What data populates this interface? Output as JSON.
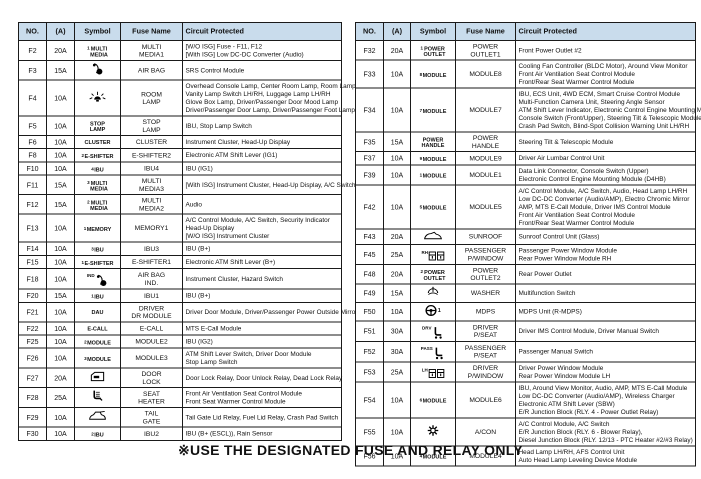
{
  "caption": "※USE THE DESIGNATED FUSE AND RELAY ONLY",
  "columns": [
    "NO.",
    "(A)",
    "Symbol",
    "Fuse Name",
    "Circuit Protected"
  ],
  "colors": {
    "header_bg": "#c9dcec",
    "border": "#1a1a1a"
  },
  "left_table": {
    "rows": [
      {
        "no": "F2",
        "amp": "20A",
        "symbol": {
          "sup": "1",
          "lines": [
            "MULTI",
            "MEDIA"
          ]
        },
        "fuse_name": [
          "MULTI",
          "MEDIA1"
        ],
        "circuits": [
          "[W/O ISG] Fuse - F11, F12",
          "[With ISG] Low DC-DC Converter (Audio)"
        ]
      },
      {
        "no": "F3",
        "amp": "15A",
        "symbol": {
          "icon": "airbag-icon"
        },
        "fuse_name": [
          "AIR BAG"
        ],
        "circuits": [
          "SRS Control Module"
        ]
      },
      {
        "no": "F4",
        "amp": "10A",
        "symbol": {
          "icon": "room-lamp-icon"
        },
        "fuse_name": [
          "ROOM",
          "LAMP"
        ],
        "circuits": [
          "Overhead Console Lamp, Center Room Lamp, Room Lamp",
          "Vanity Lamp Switch LH/RH, Luggage Lamp LH/RH",
          "Glove Box Lamp, Driver/Passenger Door Mood Lamp",
          "Driver/Passenger Door Lamp, Driver/Passenger Foot Lamp"
        ]
      },
      {
        "no": "F5",
        "amp": "10A",
        "symbol": {
          "lines": [
            "STOP",
            "LAMP"
          ]
        },
        "fuse_name": [
          "STOP",
          "LAMP"
        ],
        "circuits": [
          "IBU, Stop Lamp Switch"
        ]
      },
      {
        "no": "F6",
        "amp": "10A",
        "symbol": {
          "lines": [
            "CLUSTER"
          ]
        },
        "fuse_name": [
          "CLUSTER"
        ],
        "circuits": [
          "Instrument Cluster, Head-Up Display"
        ]
      },
      {
        "no": "F8",
        "amp": "10A",
        "symbol": {
          "sup": "2",
          "lines": [
            "E-SHIFTER"
          ]
        },
        "fuse_name": [
          "E-SHIFTER2"
        ],
        "circuits": [
          "Electronic ATM Shift Lever (IG1)"
        ]
      },
      {
        "no": "F10",
        "amp": "10A",
        "symbol": {
          "sup": "4",
          "lines": [
            "IBU"
          ]
        },
        "fuse_name": [
          "IBU4"
        ],
        "circuits": [
          "IBU (IG1)"
        ]
      },
      {
        "no": "F11",
        "amp": "15A",
        "symbol": {
          "sup": "3",
          "lines": [
            "MULTI",
            "MEDIA"
          ]
        },
        "fuse_name": [
          "MULTI",
          "MEDIA3"
        ],
        "circuits": [
          "[With ISG] Instrument Cluster, Head-Up Display, A/C Switch"
        ]
      },
      {
        "no": "F12",
        "amp": "15A",
        "symbol": {
          "sup": "2",
          "lines": [
            "MULTI",
            "MEDIA"
          ]
        },
        "fuse_name": [
          "MULTI",
          "MEDIA2"
        ],
        "circuits": [
          "Audio"
        ]
      },
      {
        "no": "F13",
        "amp": "10A",
        "symbol": {
          "sup": "1",
          "lines": [
            "MEMORY"
          ]
        },
        "fuse_name": [
          "MEMORY1"
        ],
        "circuits": [
          "A/C Control Module, A/C Switch, Security Indicator",
          "Head-Up Display",
          "[W/O ISG] Instrument Cluster"
        ]
      },
      {
        "no": "F14",
        "amp": "10A",
        "symbol": {
          "sup": "3",
          "lines": [
            "IBU"
          ]
        },
        "fuse_name": [
          "IBU3"
        ],
        "circuits": [
          "IBU (B+)"
        ]
      },
      {
        "no": "F15",
        "amp": "10A",
        "symbol": {
          "sup": "1",
          "lines": [
            "E-SHIFTER"
          ]
        },
        "fuse_name": [
          "E-SHIFTER1"
        ],
        "circuits": [
          "Electronic ATM Shift Lever (B+)"
        ]
      },
      {
        "no": "F18",
        "amp": "10A",
        "symbol": {
          "sup": "IND",
          "icon": "airbag-icon"
        },
        "fuse_name": [
          "AIR BAG",
          "IND."
        ],
        "circuits": [
          "Instrument Cluster, Hazard Switch"
        ]
      },
      {
        "no": "F20",
        "amp": "15A",
        "symbol": {
          "sup": "1",
          "lines": [
            "IBU"
          ]
        },
        "fuse_name": [
          "IBU1"
        ],
        "circuits": [
          "IBU (B+)"
        ]
      },
      {
        "no": "F21",
        "amp": "10A",
        "symbol": {
          "lines": [
            "DAU"
          ]
        },
        "fuse_name": [
          "DRIVER",
          "DR MODULE"
        ],
        "circuits": [
          "Driver Door Module, Driver/Passenger Power Outside Mirror"
        ]
      },
      {
        "no": "F22",
        "amp": "10A",
        "symbol": {
          "lines": [
            "E-CALL"
          ]
        },
        "fuse_name": [
          "E-CALL"
        ],
        "circuits": [
          "MTS E-Call Module"
        ]
      },
      {
        "no": "F25",
        "amp": "10A",
        "symbol": {
          "sup": "2",
          "lines": [
            "MODULE"
          ]
        },
        "fuse_name": [
          "MODULE2"
        ],
        "circuits": [
          "IBU (IG2)"
        ]
      },
      {
        "no": "F26",
        "amp": "10A",
        "symbol": {
          "sup": "3",
          "lines": [
            "MODULE"
          ]
        },
        "fuse_name": [
          "MODULE3"
        ],
        "circuits": [
          "ATM Shift Lever Switch, Driver Door Module",
          "Stop Lamp Switch"
        ]
      },
      {
        "no": "F27",
        "amp": "20A",
        "symbol": {
          "icon": "door-lock-icon"
        },
        "fuse_name": [
          "DOOR",
          "LOCK"
        ],
        "circuits": [
          "Door Lock Relay, Door Unlock Relay, Dead Lock Relay"
        ]
      },
      {
        "no": "F28",
        "amp": "25A",
        "symbol": {
          "icon": "seat-heater-icon"
        },
        "fuse_name": [
          "SEAT",
          "HEATER"
        ],
        "circuits": [
          "Front Air Ventilation Seat Control Module",
          "Front Seat Warmer Control Module"
        ]
      },
      {
        "no": "F29",
        "amp": "10A",
        "symbol": {
          "icon": "tail-gate-icon"
        },
        "fuse_name": [
          "TAIL",
          "GATE"
        ],
        "circuits": [
          "Tail Gate Lid Relay, Fuel Lid Relay, Crash Pad Switch"
        ]
      },
      {
        "no": "F30",
        "amp": "10A",
        "symbol": {
          "sup": "2",
          "lines": [
            "IBU"
          ]
        },
        "fuse_name": [
          "IBU2"
        ],
        "circuits": [
          "IBU (B+ (ESCL)), Rain Sensor"
        ]
      }
    ]
  },
  "right_table": {
    "rows": [
      {
        "no": "F32",
        "amp": "20A",
        "symbol": {
          "sup": "1",
          "lines": [
            "POWER",
            "OUTLET"
          ]
        },
        "fuse_name": [
          "POWER",
          "OUTLET1"
        ],
        "circuits": [
          "Front Power Outlet #2"
        ]
      },
      {
        "no": "F33",
        "amp": "10A",
        "symbol": {
          "sup": "8",
          "lines": [
            "MODULE"
          ]
        },
        "fuse_name": [
          "MODULE8"
        ],
        "circuits": [
          "Cooling Fan Controller (BLDC Motor), Around View Monitor",
          "Front Air Ventilation Seat Control Module",
          "Front/Rear Seat Warmer Control Module"
        ]
      },
      {
        "no": "F34",
        "amp": "10A",
        "symbol": {
          "sup": "7",
          "lines": [
            "MODULE"
          ]
        },
        "fuse_name": [
          "MODULE7"
        ],
        "circuits": [
          "IBU, ECS Unit, 4WD ECM, Smart Cruise Control Module",
          "Multi-Function Camera Unit, Steering Angle Sensor",
          "ATM Shift Lever Indicator, Electronic Control Engine Mounting Module",
          "Console Switch (Front/Upper), Steering Tilt & Telescopic Module",
          "Crash Pad Switch, Blind-Spot Collision Warning Unit LH/RH"
        ]
      },
      {
        "no": "F35",
        "amp": "15A",
        "symbol": {
          "lines": [
            "POWER",
            "HANDLE"
          ]
        },
        "fuse_name": [
          "POWER",
          "HANDLE"
        ],
        "circuits": [
          "Steering Tilt & Telescopic Module"
        ]
      },
      {
        "no": "F37",
        "amp": "10A",
        "symbol": {
          "sup": "9",
          "lines": [
            "MODULE"
          ]
        },
        "fuse_name": [
          "MODULE9"
        ],
        "circuits": [
          "Driver Air Lumbar Control Unit"
        ]
      },
      {
        "no": "F39",
        "amp": "10A",
        "symbol": {
          "sup": "1",
          "lines": [
            "MODULE"
          ]
        },
        "fuse_name": [
          "MODULE1"
        ],
        "circuits": [
          "Data Link Connector, Console Switch (Upper)",
          "Electronic Control Engine Mounting Module (D4HB)"
        ]
      },
      {
        "no": "F42",
        "amp": "10A",
        "symbol": {
          "sup": "5",
          "lines": [
            "MODULE"
          ]
        },
        "fuse_name": [
          "MODULE5"
        ],
        "circuits": [
          "A/C Control Module, A/C Switch, Audio, Head Lamp LH/RH",
          "Low DC-DC Converter (Audio/AMP), Electro Chromic Mirror",
          "AMP, MTS E-Call Module, Driver IMS Control Module",
          "Front Air Ventilation Seat Control Module",
          "Front/Rear Seat Warmer Control Module"
        ]
      },
      {
        "no": "F43",
        "amp": "20A",
        "symbol": {
          "icon": "sunroof-icon"
        },
        "fuse_name": [
          "SUNROOF"
        ],
        "circuits": [
          "Sunroof Control Unit (Glass)"
        ]
      },
      {
        "no": "F45",
        "amp": "25A",
        "symbol": {
          "sup": "RH",
          "icon": "window-pair-icon"
        },
        "fuse_name": [
          "PASSENGER",
          "P/WINDOW"
        ],
        "circuits": [
          "Passenger Power Window Module",
          "Rear Power Window Module RH"
        ]
      },
      {
        "no": "F48",
        "amp": "20A",
        "symbol": {
          "sup": "2",
          "lines": [
            "POWER",
            "OUTLET"
          ]
        },
        "fuse_name": [
          "POWER",
          "OUTLET2"
        ],
        "circuits": [
          "Rear Power Outlet"
        ]
      },
      {
        "no": "F49",
        "amp": "15A",
        "symbol": {
          "icon": "washer-icon"
        },
        "fuse_name": [
          "WASHER"
        ],
        "circuits": [
          "Multifunction Switch"
        ]
      },
      {
        "no": "F50",
        "amp": "10A",
        "symbol": {
          "icon": "steering-wheel-icon",
          "suffix": "1"
        },
        "fuse_name": [
          "MDPS"
        ],
        "circuits": [
          "MDPS Unit (R-MDPS)"
        ]
      },
      {
        "no": "F51",
        "amp": "30A",
        "symbol": {
          "sup": "DRV",
          "icon": "power-seat-icon"
        },
        "fuse_name": [
          "DRIVER",
          "P/SEAT"
        ],
        "circuits": [
          "Driver IMS Control Module, Driver Manual Switch"
        ]
      },
      {
        "no": "F52",
        "amp": "30A",
        "symbol": {
          "sup": "PASS",
          "icon": "power-seat-icon"
        },
        "fuse_name": [
          "PASSENGER",
          "P/SEAT"
        ],
        "circuits": [
          "Passenger Manual Switch"
        ]
      },
      {
        "no": "F53",
        "amp": "25A",
        "symbol": {
          "sup": "LH",
          "icon": "window-pair-icon"
        },
        "fuse_name": [
          "DRIVER",
          "P/WINDOW"
        ],
        "circuits": [
          "Driver Power Window Module",
          "Rear Power Window Module LH"
        ]
      },
      {
        "no": "F54",
        "amp": "10A",
        "symbol": {
          "sup": "6",
          "lines": [
            "MODULE"
          ]
        },
        "fuse_name": [
          "MODULE6"
        ],
        "circuits": [
          "IBU, Around View Monitor, Audio, AMP, MTS E-Call Module",
          "Low DC-DC Converter (Audio/AMP), Wireless Charger",
          "Electronic ATM Shift Lever (SBW)",
          "E/R Junction Block (RLY. 4 - Power Outlet Relay)"
        ]
      },
      {
        "no": "F55",
        "amp": "10A",
        "symbol": {
          "icon": "fan-icon"
        },
        "fuse_name": [
          "A/CON"
        ],
        "circuits": [
          "A/C Control Module, A/C Switch",
          "E/R Junction Block (RLY. 6 - Blower Relay),",
          "Diesel Junction Block (RLY. 12/13 - PTC Heater #2/#3 Relay)"
        ]
      },
      {
        "no": "F56",
        "amp": "10A",
        "symbol": {
          "sup": "4",
          "lines": [
            "MODULE"
          ]
        },
        "fuse_name": [
          "MODULE4"
        ],
        "circuits": [
          "Head Lamp LH/RH, AFS Control Unit",
          "Auto Head Lamp Leveling Device Module"
        ]
      }
    ]
  }
}
